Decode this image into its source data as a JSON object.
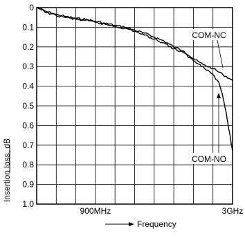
{
  "chart_data": {
    "type": "line",
    "title": "",
    "xlabel": "Frequency",
    "ylabel": "Insertion loss, dB",
    "x_range": [
      0,
      3000
    ],
    "x_unit": "MHz",
    "x_ticks": [
      {
        "label": "900MHz",
        "value": 900
      },
      {
        "label": "3GHz",
        "value": 3000
      }
    ],
    "ylim": [
      0,
      1.0
    ],
    "y_inverted": true,
    "y_ticks": [
      "0",
      "0.1",
      "0.2",
      "0.3",
      "0.4",
      "0.5",
      "0.6",
      "0.7",
      "0.8",
      "0.9",
      "1.0"
    ],
    "y_tick_values": [
      0,
      0.1,
      0.2,
      0.3,
      0.4,
      0.5,
      0.6,
      0.7,
      0.8,
      0.9,
      1.0
    ],
    "grid": true,
    "series": [
      {
        "name": "COM-NC",
        "x": [
          0,
          150,
          300,
          450,
          600,
          750,
          900,
          1050,
          1200,
          1350,
          1500,
          1650,
          1800,
          1950,
          2100,
          2250,
          2400,
          2550,
          2700,
          2850,
          3000
        ],
        "y": [
          0.0,
          0.02,
          0.035,
          0.045,
          0.055,
          0.06,
          0.07,
          0.08,
          0.09,
          0.1,
          0.115,
          0.13,
          0.15,
          0.17,
          0.2,
          0.22,
          0.26,
          0.29,
          0.31,
          0.34,
          0.37
        ]
      },
      {
        "name": "COM-NO",
        "x": [
          0,
          150,
          300,
          450,
          600,
          750,
          900,
          1050,
          1200,
          1350,
          1500,
          1650,
          1800,
          1950,
          2100,
          2250,
          2400,
          2550,
          2700,
          2800,
          2850,
          2900,
          2950,
          3000
        ],
        "y": [
          0.0,
          0.025,
          0.04,
          0.05,
          0.06,
          0.065,
          0.075,
          0.085,
          0.095,
          0.105,
          0.12,
          0.14,
          0.16,
          0.18,
          0.21,
          0.23,
          0.27,
          0.3,
          0.34,
          0.39,
          0.45,
          0.53,
          0.63,
          0.73
        ]
      }
    ],
    "annotations": [
      "COM-NC",
      "COM-NO"
    ]
  }
}
